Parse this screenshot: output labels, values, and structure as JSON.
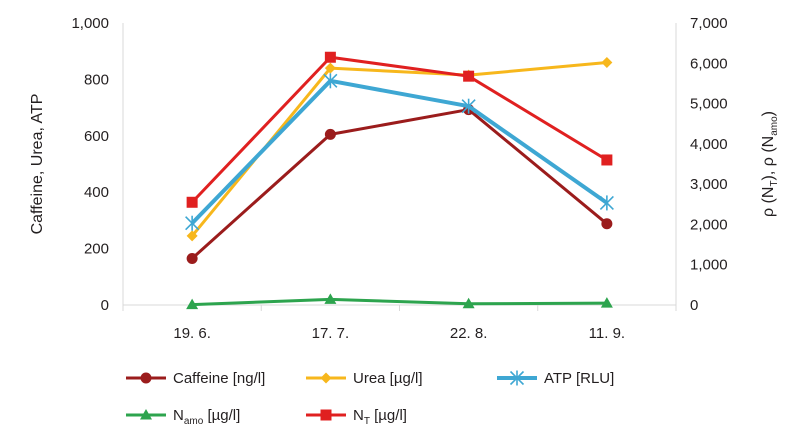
{
  "chart_data": {
    "type": "line",
    "categories": [
      "19. 6.",
      "17. 7.",
      "22. 8.",
      "11. 9."
    ],
    "ylabel_left": "Caffeine, Urea, ATP",
    "ylabel_right": {
      "prefix1": "ρ (N",
      "sub1": "T",
      "mid": "), ρ (N",
      "sub2": "amo",
      "suffix": ")"
    },
    "ylim_left": [
      0,
      1000
    ],
    "ylim_right": [
      0,
      7000
    ],
    "yticks_left": [
      "0",
      "200",
      "400",
      "600",
      "800",
      "1,000"
    ],
    "yticks_right": [
      "0",
      "1,000",
      "2,000",
      "3,000",
      "4,000",
      "5,000",
      "6,000",
      "7,000"
    ],
    "grid": false,
    "legend_position": "bottom",
    "series": [
      {
        "key": "caffeine",
        "name": "Caffeine [ng/l]",
        "axis": "left",
        "values": [
          165,
          605,
          693,
          288
        ],
        "color": "#9b1c1c",
        "marker": "circle"
      },
      {
        "key": "urea",
        "name": "Urea [µg/l]",
        "axis": "left",
        "values": [
          245,
          840,
          815,
          860
        ],
        "color": "#f7b71c",
        "marker": "diamond"
      },
      {
        "key": "atp",
        "name": "ATP [RLU]",
        "axis": "left",
        "values": [
          290,
          795,
          705,
          362
        ],
        "color": "#3ea7d3",
        "marker": "star"
      },
      {
        "key": "namo",
        "name": "N",
        "name_sub": "amo",
        "name_suffix": " [µg/l]",
        "axis": "right",
        "values": [
          10,
          140,
          30,
          45
        ],
        "color": "#2da44e",
        "marker": "triangle"
      },
      {
        "key": "nt",
        "name": "N",
        "name_sub": "T",
        "name_suffix": " [µg/l]",
        "axis": "right",
        "values": [
          2550,
          6150,
          5680,
          3600
        ],
        "color": "#e02020",
        "marker": "square"
      }
    ]
  }
}
